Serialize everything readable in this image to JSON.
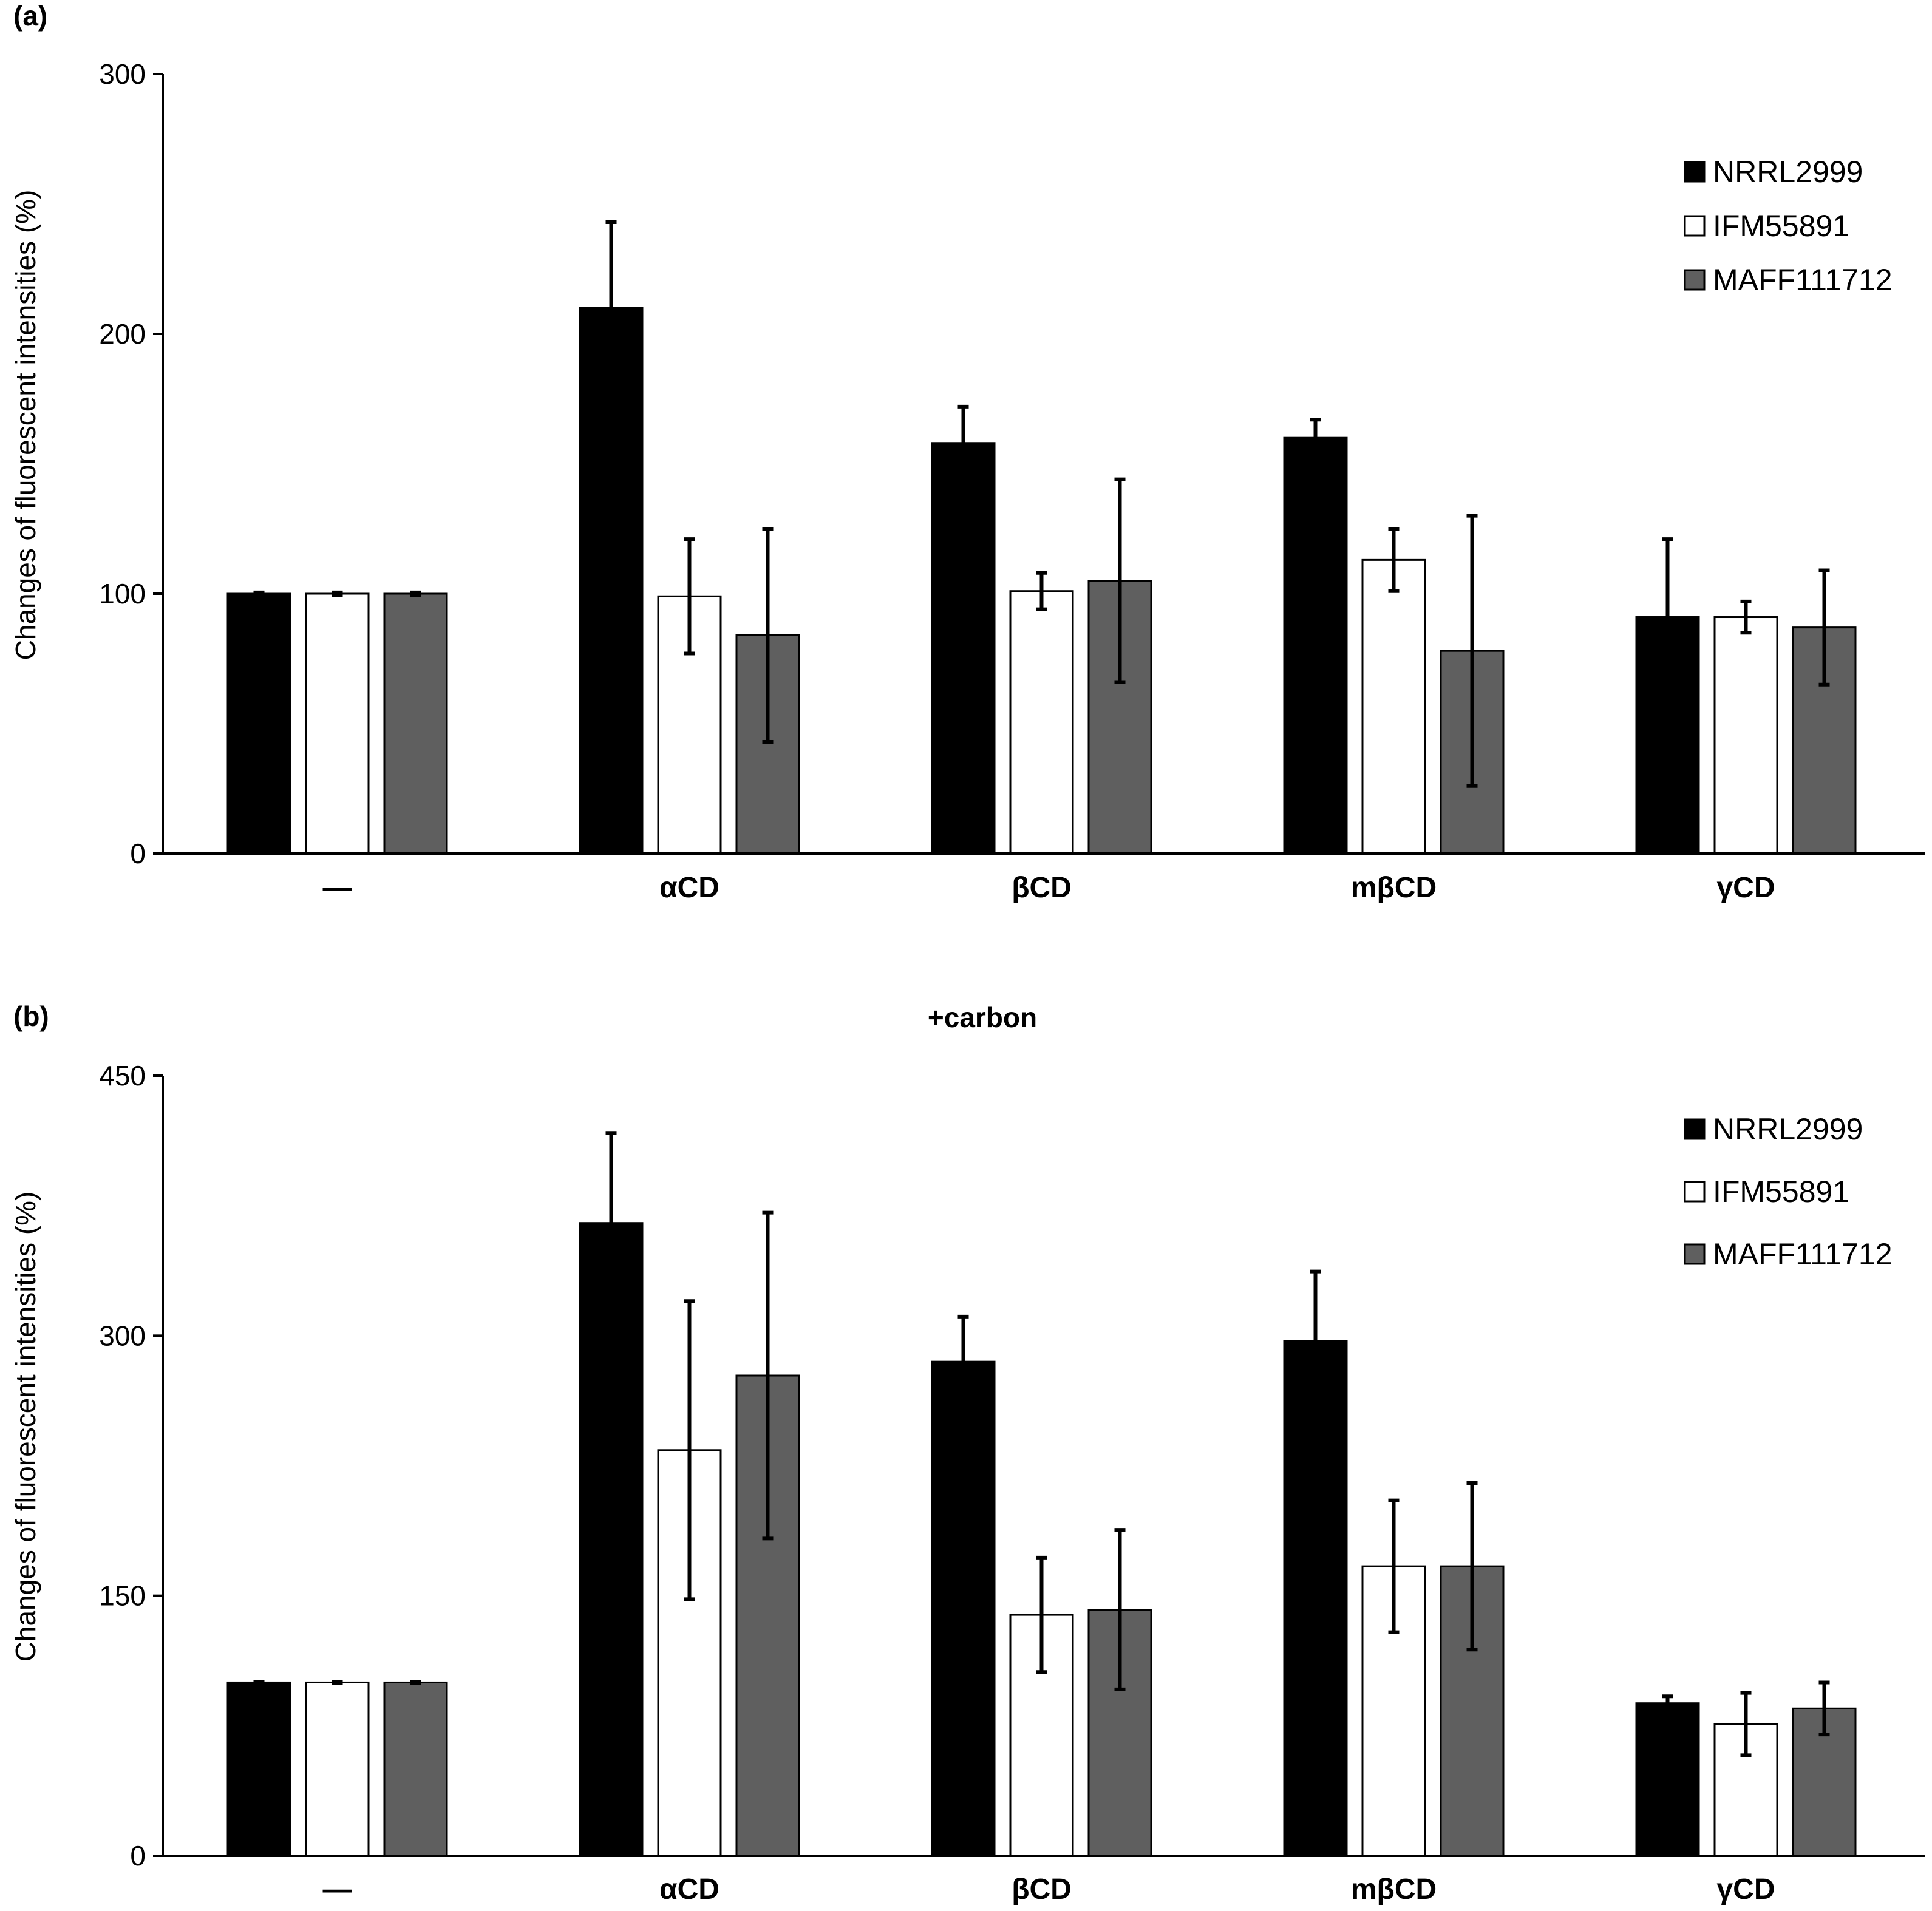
{
  "colors": {
    "NRRL2999": "#000000",
    "IFM55891": "#ffffff",
    "MAFF111712": "#5f5f5f",
    "axis": "#000000"
  },
  "chart_data": [
    {
      "panel": "(a)",
      "type": "bar",
      "title": "",
      "ylabel": "Changes of fluorescent intensities (%)",
      "xlabel": "",
      "ylim": [
        0,
        300
      ],
      "yticks": [
        "0",
        "100",
        "200",
        "300"
      ],
      "categories": [
        "—",
        "αCD",
        "βCD",
        "mβCD",
        "γCD"
      ],
      "legend_position": "top-right",
      "series": [
        {
          "name": "NRRL2999",
          "values": [
            100,
            210,
            158,
            160,
            91
          ],
          "errors": [
            0.5,
            33,
            14,
            7,
            30
          ]
        },
        {
          "name": "IFM55891",
          "values": [
            100,
            99,
            101,
            113,
            91
          ],
          "errors": [
            0.5,
            22,
            7,
            12,
            6
          ]
        },
        {
          "name": "MAFF111712",
          "values": [
            100,
            84,
            105,
            78,
            87
          ],
          "errors": [
            0.5,
            41,
            39,
            52,
            22
          ]
        }
      ]
    },
    {
      "panel": "(b)",
      "type": "bar",
      "title": "+carbon",
      "ylabel": "Changes of fluorescent intensities (%)",
      "xlabel": "",
      "ylim": [
        0,
        450
      ],
      "yticks": [
        "0",
        "150",
        "300",
        "450"
      ],
      "categories": [
        "—",
        "αCD",
        "βCD",
        "mβCD",
        "γCD"
      ],
      "legend_position": "top-right",
      "series": [
        {
          "name": "NRRL2999",
          "values": [
            100,
            365,
            285,
            297,
            88
          ],
          "errors": [
            0.5,
            52,
            26,
            40,
            4
          ]
        },
        {
          "name": "IFM55891",
          "values": [
            100,
            234,
            139,
            167,
            76
          ],
          "errors": [
            0.5,
            86,
            33,
            38,
            18
          ]
        },
        {
          "name": "MAFF111712",
          "values": [
            100,
            277,
            142,
            167,
            85
          ],
          "errors": [
            0.5,
            94,
            46,
            48,
            15
          ]
        }
      ]
    }
  ]
}
